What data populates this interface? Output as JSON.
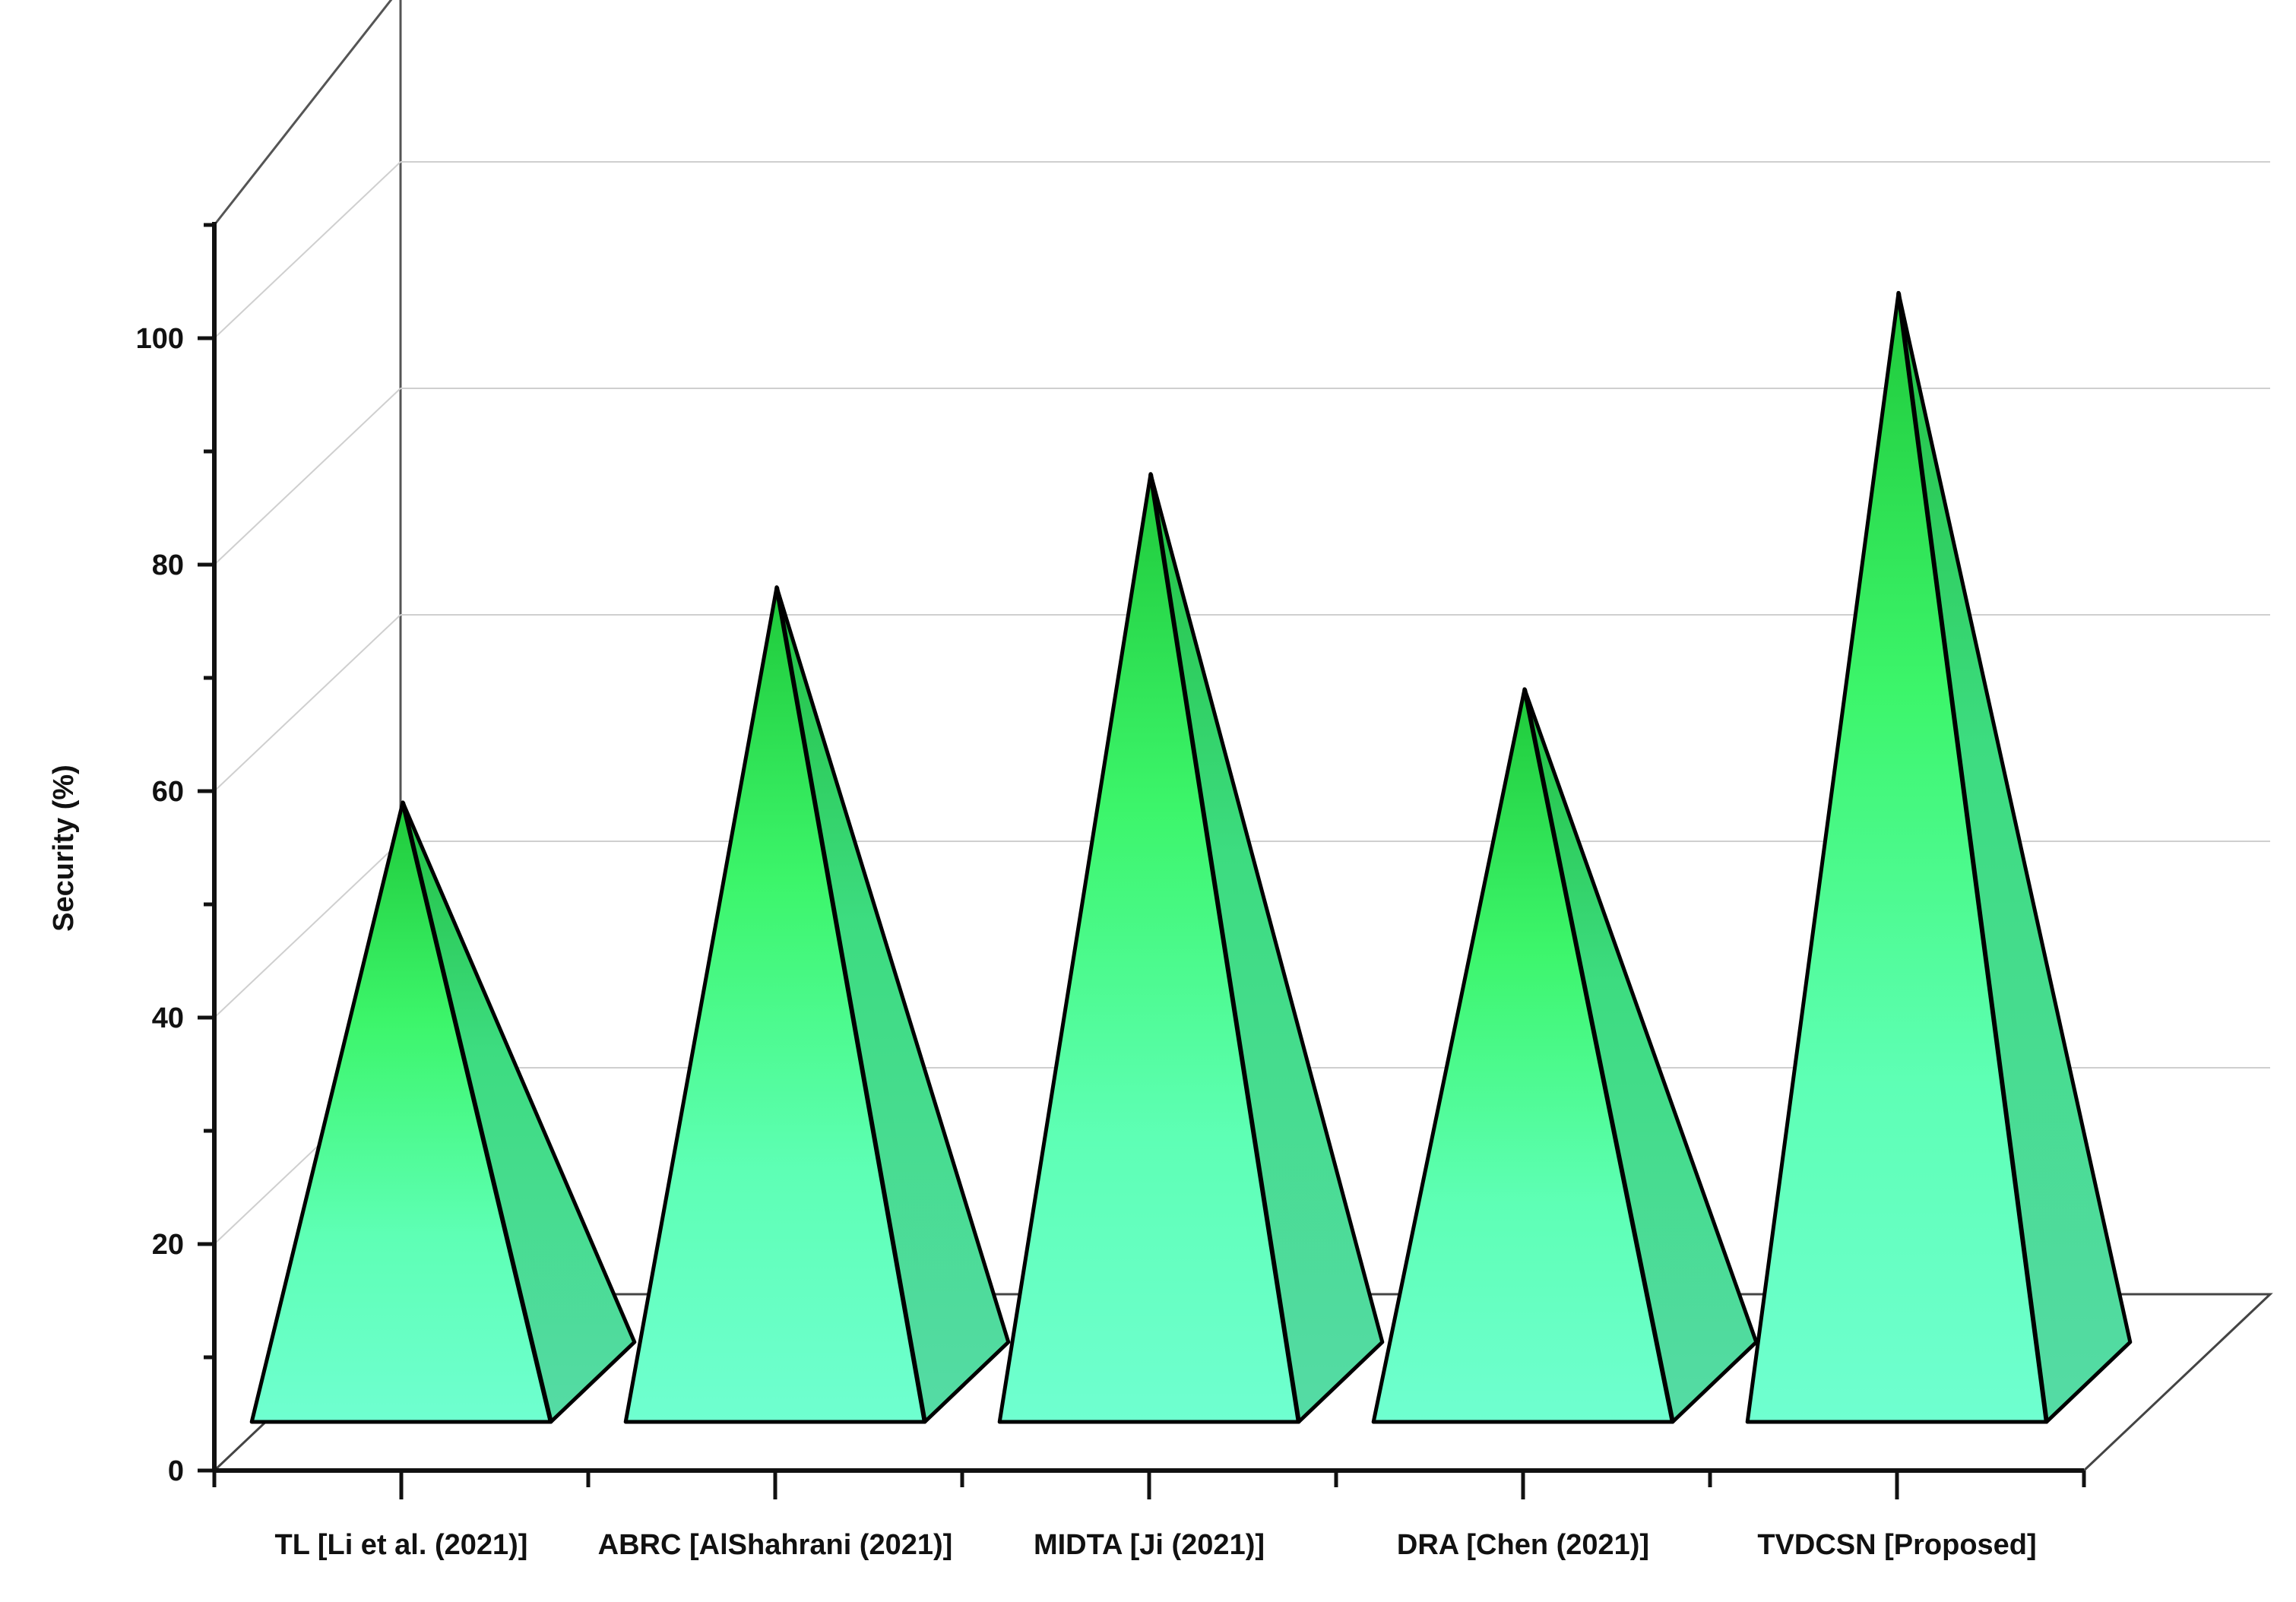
{
  "chart_data": {
    "type": "bar",
    "style": "3d-pyramid",
    "categories": [
      "TL [Li et al. (2021)]",
      "ABRC [AlShahrani (2021)]",
      "MIDTA [Ji (2021)]",
      "DRA [Chen (2021)]",
      "TVDCSN [Proposed]"
    ],
    "values": [
      59,
      78,
      88,
      69,
      104
    ],
    "title": "",
    "xlabel": "",
    "ylabel": "Security (%)",
    "ylim": [
      0,
      110
    ],
    "yticks": [
      0,
      20,
      40,
      60,
      80,
      100
    ],
    "ytick_labels": [
      "0",
      "20",
      "40",
      "60",
      "80",
      "100"
    ],
    "grid": true,
    "legend": "none",
    "colors": {
      "top": "#1fc93a",
      "mid": "#3cf56a",
      "base": "#6fffd0",
      "side": "#55dba5",
      "outline": "#000000",
      "grid": "#cfcfcf",
      "axis": "#111111"
    }
  }
}
